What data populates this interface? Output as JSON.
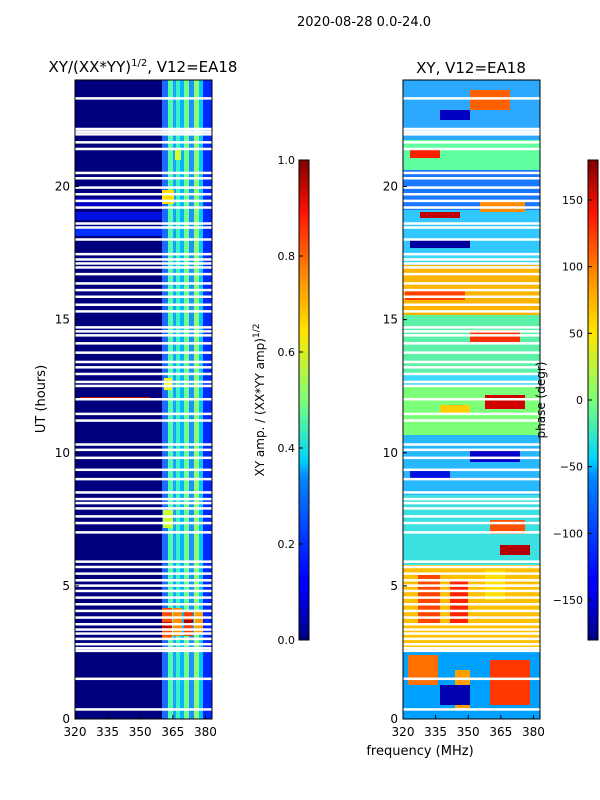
{
  "suptitle": "2020-08-28 0.0-24.0",
  "xlabel_shared": "frequency (MHz)",
  "chart_data": [
    {
      "type": "heatmap",
      "title_main": "XY/(XX*YY)",
      "title_exp": "1/2",
      "title_tail": ", V12=EA18",
      "ylabel": "UT (hours)",
      "x_ticks": [
        320,
        335,
        350,
        365,
        380
      ],
      "y_ticks": [
        0,
        5,
        10,
        15,
        20
      ],
      "xlim": [
        320,
        383
      ],
      "ylim": [
        0,
        24
      ],
      "colorbar": {
        "label_main": "XY amp. / (XX*YY amp)",
        "label_exp": "1/2",
        "ticks": [
          "0.0",
          "0.2",
          "0.4",
          "0.6",
          "0.8",
          "1.0"
        ],
        "range": [
          0.0,
          1.0
        ],
        "colormap": "jet"
      },
      "blank_rows_hours": [
        0.35,
        1.5,
        2.55,
        2.65,
        2.8,
        3.0,
        3.2,
        3.35,
        3.55,
        3.8,
        4.05,
        4.3,
        4.55,
        4.8,
        5.0,
        5.2,
        5.45,
        5.7,
        5.9,
        7.0,
        7.35,
        7.6,
        7.9,
        8.1,
        8.25,
        8.5,
        9.0,
        9.35,
        9.8,
        10.1,
        10.3,
        11.2,
        11.45,
        12.0,
        12.5,
        12.65,
        12.95,
        13.2,
        13.4,
        13.75,
        14.1,
        14.4,
        14.55,
        14.7,
        15.3,
        15.55,
        15.85,
        16.1,
        16.35,
        16.7,
        16.95,
        17.1,
        17.25,
        17.45,
        18.0,
        18.45,
        18.6,
        19.2,
        19.45,
        19.7,
        19.95,
        20.3,
        20.5,
        21.4,
        21.65,
        21.95,
        22.05,
        22.15,
        23.3
      ]
    },
    {
      "type": "heatmap",
      "title_main": "XY, V12=EA18",
      "ylabel": "",
      "x_ticks": [
        320,
        335,
        350,
        365,
        380
      ],
      "y_ticks": [
        0,
        5,
        10,
        15,
        20
      ],
      "xlim": [
        320,
        383
      ],
      "ylim": [
        0,
        24
      ],
      "colorbar": {
        "label_main": "phase (degr)",
        "ticks": [
          "−150",
          "−100",
          "−50",
          "0",
          "50",
          "100",
          "150"
        ],
        "tick_values": [
          -150,
          -100,
          -50,
          0,
          50,
          100,
          150
        ],
        "range": [
          -180,
          180
        ],
        "colormap": "jet"
      },
      "blank_rows_hours": [
        0.35,
        1.5,
        2.55,
        2.65,
        2.8,
        3.0,
        3.2,
        3.35,
        3.55,
        3.8,
        4.05,
        4.3,
        4.55,
        4.8,
        5.0,
        5.2,
        5.45,
        5.7,
        5.9,
        7.0,
        7.35,
        7.6,
        7.9,
        8.1,
        8.25,
        8.5,
        9.0,
        9.35,
        9.8,
        10.1,
        10.3,
        11.2,
        11.45,
        12.0,
        12.5,
        12.65,
        12.95,
        13.2,
        13.4,
        13.75,
        14.1,
        14.4,
        14.55,
        14.7,
        15.3,
        15.55,
        15.85,
        16.1,
        16.35,
        16.7,
        16.95,
        17.1,
        17.25,
        17.45,
        18.0,
        18.45,
        18.6,
        19.2,
        19.45,
        19.7,
        19.95,
        20.3,
        20.5,
        21.4,
        21.65,
        21.95,
        22.05,
        22.15,
        23.3
      ]
    }
  ]
}
